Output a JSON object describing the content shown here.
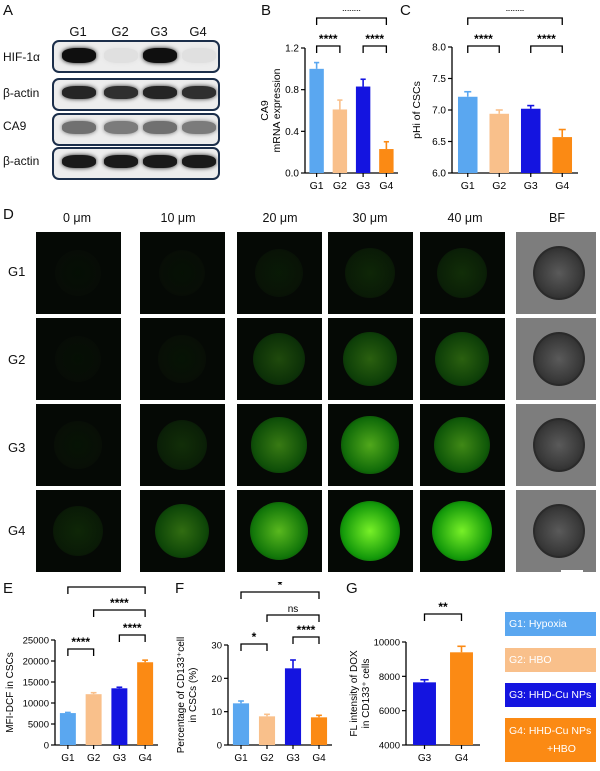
{
  "panels": {
    "A": "A",
    "B": "B",
    "C": "C",
    "D": "D",
    "E": "E",
    "F": "F",
    "G": "G"
  },
  "groups": [
    "G1",
    "G2",
    "G3",
    "G4"
  ],
  "colors": {
    "G1": "#5aa7f0",
    "G2": "#f9c08b",
    "G3": "#1414e0",
    "G4": "#fb8a14"
  },
  "westernBlot": {
    "lanes": [
      "G1",
      "G2",
      "G3",
      "G4"
    ],
    "rows": [
      {
        "label": "HIF-1α",
        "intensities": [
          1.0,
          0.03,
          1.0,
          0.03
        ]
      },
      {
        "label": "β-actin",
        "intensities": [
          0.9,
          0.85,
          0.9,
          0.85
        ]
      },
      {
        "label": "CA9",
        "intensities": [
          0.55,
          0.5,
          0.55,
          0.5
        ]
      },
      {
        "label": "β-actin",
        "intensities": [
          0.95,
          0.95,
          0.95,
          0.95
        ]
      }
    ]
  },
  "microscopy": {
    "columns": [
      "0 μm",
      "10 μm",
      "20 μm",
      "30 μm",
      "40 μm",
      "BF"
    ],
    "rows": [
      "G1",
      "G2",
      "G3",
      "G4"
    ],
    "fluorescence_level": [
      [
        0.02,
        0.05,
        0.15,
        0.25,
        0.3
      ],
      [
        0.03,
        0.08,
        0.45,
        0.55,
        0.55
      ],
      [
        0.08,
        0.3,
        0.65,
        0.8,
        0.7
      ],
      [
        0.25,
        0.6,
        0.85,
        1.0,
        1.0
      ]
    ]
  },
  "legend": [
    {
      "group": "G1",
      "text": "G1: Hypoxia"
    },
    {
      "group": "G2",
      "text": "G2: HBO"
    },
    {
      "group": "G3",
      "text": "G3: HHD-Cu NPs"
    },
    {
      "group": "G4",
      "text": "G4: HHD-Cu NPs",
      "text2": "+HBO"
    }
  ],
  "chart_data": [
    {
      "panel": "B",
      "type": "bar",
      "categories": [
        "G1",
        "G2",
        "G3",
        "G4"
      ],
      "values": [
        1.0,
        0.61,
        0.83,
        0.23
      ],
      "errors": [
        0.06,
        0.09,
        0.07,
        0.07
      ],
      "ylabel": "CA9 mRNA expression",
      "ylabel_lines": [
        "CA9",
        "mRNA expression"
      ],
      "ylim": [
        0,
        1.2
      ],
      "yticks": [
        0.0,
        0.4,
        0.8,
        1.2
      ],
      "ytick_labels": [
        "0.0",
        "0.4",
        "0.8",
        "1.2"
      ],
      "significance": [
        {
          "from": "G1",
          "to": "G2",
          "label": "****"
        },
        {
          "from": "G3",
          "to": "G4",
          "label": "****"
        },
        {
          "from": "G1",
          "to": "G4",
          "label": "****"
        }
      ]
    },
    {
      "panel": "C",
      "type": "bar",
      "categories": [
        "G1",
        "G2",
        "G3",
        "G4"
      ],
      "values": [
        7.21,
        6.94,
        7.02,
        6.57
      ],
      "errors": [
        0.08,
        0.06,
        0.05,
        0.12
      ],
      "ylabel": "pHi of CSCs",
      "ylabel_lines": [
        "pHi of CSCs"
      ],
      "ylim": [
        6.0,
        8.0
      ],
      "yticks": [
        6.0,
        6.5,
        7.0,
        7.5,
        8.0
      ],
      "ytick_labels": [
        "6.0",
        "6.5",
        "7.0",
        "7.5",
        "8.0"
      ],
      "significance": [
        {
          "from": "G1",
          "to": "G2",
          "label": "****"
        },
        {
          "from": "G3",
          "to": "G4",
          "label": "****"
        },
        {
          "from": "G1",
          "to": "G4",
          "label": "****"
        }
      ]
    },
    {
      "panel": "E",
      "type": "bar",
      "categories": [
        "G1",
        "G2",
        "G3",
        "G4"
      ],
      "values": [
        7600,
        12100,
        13500,
        19700
      ],
      "errors": [
        150,
        350,
        250,
        500
      ],
      "ylabel": "MFI-DCF in CSCs",
      "ylabel_lines": [
        "MFI-DCF in CSCs"
      ],
      "ylim": [
        0,
        25000
      ],
      "yticks": [
        0,
        5000,
        10000,
        15000,
        20000,
        25000
      ],
      "ytick_labels": [
        "0",
        "5000",
        "10000",
        "15000",
        "20000",
        "25000"
      ],
      "significance": [
        {
          "from": "G1",
          "to": "G2",
          "label": "****"
        },
        {
          "from": "G3",
          "to": "G4",
          "label": "****"
        },
        {
          "from": "G2",
          "to": "G4",
          "label": "****"
        },
        {
          "from": "G1",
          "to": "G4",
          "label": "****"
        }
      ]
    },
    {
      "panel": "F",
      "type": "bar",
      "categories": [
        "G1",
        "G2",
        "G3",
        "G4"
      ],
      "values": [
        12.5,
        8.6,
        23.0,
        8.3
      ],
      "errors": [
        0.7,
        0.6,
        2.5,
        0.6
      ],
      "ylabel": "Percentage of CD133⁺cell in CSCs (%)",
      "ylabel_lines": [
        "Percentage of CD133⁺cell",
        "in CSCs (%)"
      ],
      "ylim": [
        0,
        30
      ],
      "yticks": [
        0,
        10,
        20,
        30
      ],
      "ytick_labels": [
        "0",
        "10",
        "20",
        "30"
      ],
      "significance": [
        {
          "from": "G1",
          "to": "G2",
          "label": "*"
        },
        {
          "from": "G3",
          "to": "G4",
          "label": "****"
        },
        {
          "from": "G2",
          "to": "G4",
          "label": "ns"
        },
        {
          "from": "G1",
          "to": "G4",
          "label": "*"
        }
      ]
    },
    {
      "panel": "G",
      "type": "bar",
      "categories": [
        "G3",
        "G4"
      ],
      "values": [
        7650,
        9400
      ],
      "errors": [
        150,
        350
      ],
      "ylabel": "FL intensity of DOX in CD133⁺ cells",
      "ylabel_lines": [
        "FL intensity of DOX",
        "in CD133⁺ cells"
      ],
      "ylim": [
        4000,
        10000
      ],
      "yticks": [
        4000,
        6000,
        8000,
        10000
      ],
      "ytick_labels": [
        "4000",
        "6000",
        "8000",
        "10000"
      ],
      "significance": [
        {
          "from": "G3",
          "to": "G4",
          "label": "**"
        }
      ]
    }
  ]
}
